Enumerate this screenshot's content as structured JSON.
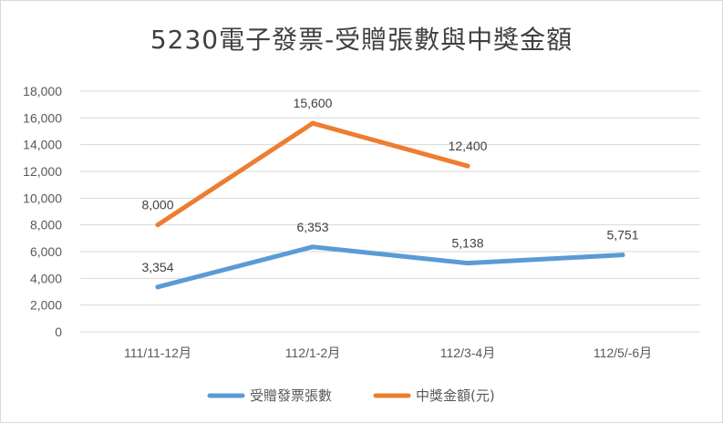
{
  "chart_data": {
    "type": "line",
    "title": "5230電子發票-受贈張數與中獎金額",
    "categories": [
      "111/11-12月",
      "112/1-2月",
      "112/3-4月",
      "112/5/-6月"
    ],
    "ylim": [
      0,
      18000
    ],
    "yticks": [
      0,
      2000,
      4000,
      6000,
      8000,
      10000,
      12000,
      14000,
      16000,
      18000
    ],
    "ytick_labels": [
      "0",
      "2,000",
      "4,000",
      "6,000",
      "8,000",
      "10,000",
      "12,000",
      "14,000",
      "16,000",
      "18,000"
    ],
    "grid": true,
    "legend_position": "bottom",
    "series": [
      {
        "name": "受贈發票張數",
        "color": "#5b9bd5",
        "values": [
          3354,
          6353,
          5138,
          5751
        ],
        "labels": [
          "3,354",
          "6,353",
          "5,138",
          "5,751"
        ]
      },
      {
        "name": "中獎金額(元)",
        "color": "#ed7d31",
        "values": [
          8000,
          15600,
          12400,
          null
        ],
        "labels": [
          "8,000",
          "15,600",
          "12,400",
          null
        ]
      }
    ]
  }
}
